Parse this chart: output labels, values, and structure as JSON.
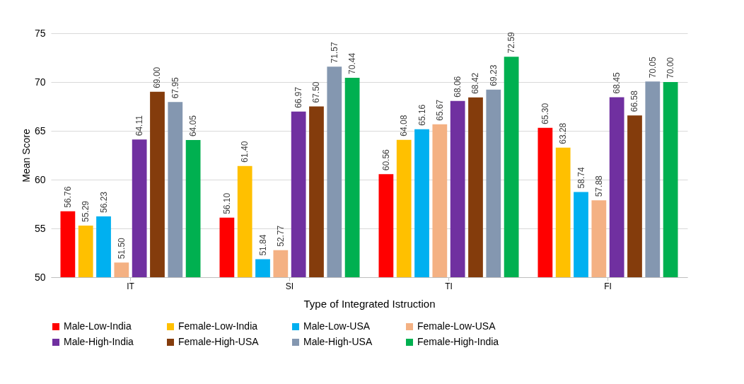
{
  "chart_data": {
    "type": "bar",
    "xlabel": "Type of Integrated Istruction",
    "ylabel": "Mean Score",
    "categories": [
      "IT",
      "SI",
      "TI",
      "FI"
    ],
    "ylim": [
      50,
      75
    ],
    "yticks": [
      50,
      55,
      60,
      65,
      70,
      75
    ],
    "grid": "y",
    "legend": "bottom",
    "series": [
      {
        "name": "Male-Low-India",
        "color": "#ff0000",
        "values": [
          56.76,
          56.1,
          60.56,
          65.3
        ],
        "value_labels": [
          "56.76",
          "56.10",
          "60.56",
          "65.30"
        ]
      },
      {
        "name": "Female-Low-India",
        "color": "#ffc000",
        "values": [
          55.29,
          61.4,
          64.08,
          63.28
        ],
        "value_labels": [
          "55.29",
          "61.40",
          "64.08",
          "63.28"
        ]
      },
      {
        "name": "Male-Low-USA",
        "color": "#00b0f0",
        "values": [
          56.23,
          51.84,
          65.16,
          58.74
        ],
        "value_labels": [
          "56.23",
          "51.84",
          "65.16",
          "58.74"
        ]
      },
      {
        "name": "Female-Low-USA",
        "color": "#f4b183",
        "values": [
          51.5,
          52.77,
          65.67,
          57.88
        ],
        "value_labels": [
          "51.50",
          "52.77",
          "65.67",
          "57.88"
        ]
      },
      {
        "name": "Male-High-India",
        "color": "#7030a0",
        "values": [
          64.11,
          66.97,
          68.06,
          68.45
        ],
        "value_labels": [
          "64.11",
          "66.97",
          "68.06",
          "68.45"
        ]
      },
      {
        "name": "Female-High-USA",
        "color": "#843c0c",
        "values": [
          69.0,
          67.5,
          68.42,
          66.58
        ],
        "value_labels": [
          "69.00",
          "67.50",
          "68.42",
          "66.58"
        ]
      },
      {
        "name": "Male-High-USA",
        "color": "#8497b0",
        "values": [
          67.95,
          71.57,
          69.23,
          70.05
        ],
        "value_labels": [
          "67.95",
          "71.57",
          "69.23",
          "70.05"
        ]
      },
      {
        "name": "Female-High-India",
        "color": "#00b050",
        "values": [
          64.05,
          70.44,
          72.59,
          70.0
        ],
        "value_labels": [
          "64.05",
          "70.44",
          "72.59",
          "70.00"
        ]
      }
    ]
  }
}
